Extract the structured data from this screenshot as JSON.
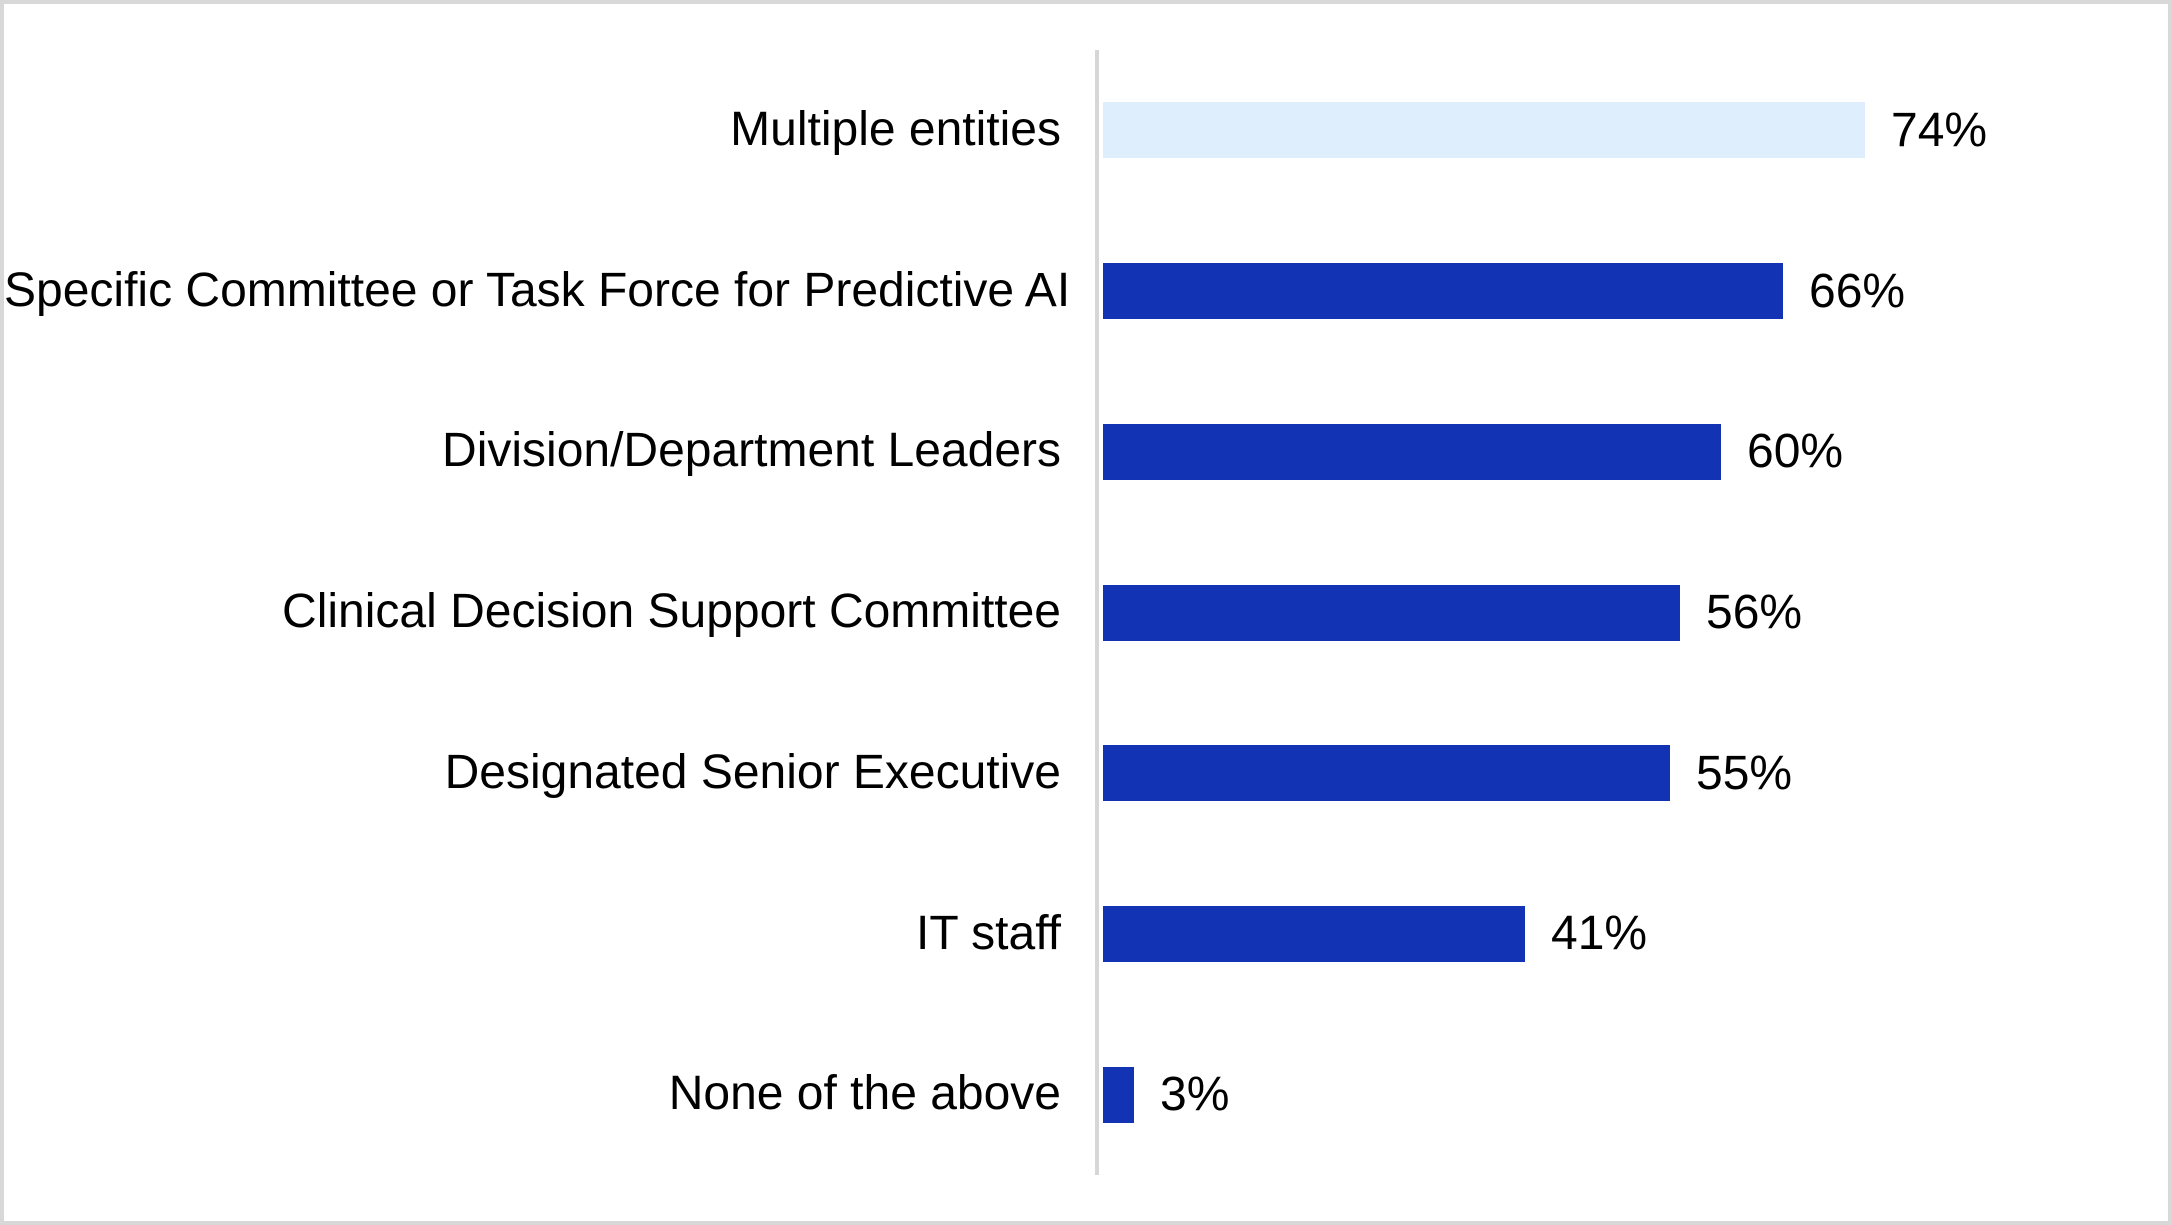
{
  "chart_data": {
    "type": "bar",
    "orientation": "horizontal",
    "title": "",
    "xlabel": "",
    "ylabel": "",
    "xlim": [
      0,
      100
    ],
    "grid": false,
    "legend": false,
    "categories": [
      "Multiple entities",
      "Specific Committee or Task Force for Predictive AI",
      "Division/Department Leaders",
      "Clinical Decision Support Committee",
      "Designated Senior Executive",
      "IT staff",
      "None of the above"
    ],
    "values": [
      74,
      66,
      60,
      56,
      55,
      41,
      3
    ],
    "value_labels": [
      "74%",
      "66%",
      "60%",
      "56%",
      "55%",
      "41%",
      "3%"
    ],
    "highlight_index": 0,
    "colors": {
      "bar": "#1233b4",
      "highlight_bar": "#deeefc",
      "axis_line": "#d6d6d6",
      "text": "#000000",
      "frame_border": "#d8d8d8",
      "background": "#ffffff"
    }
  }
}
